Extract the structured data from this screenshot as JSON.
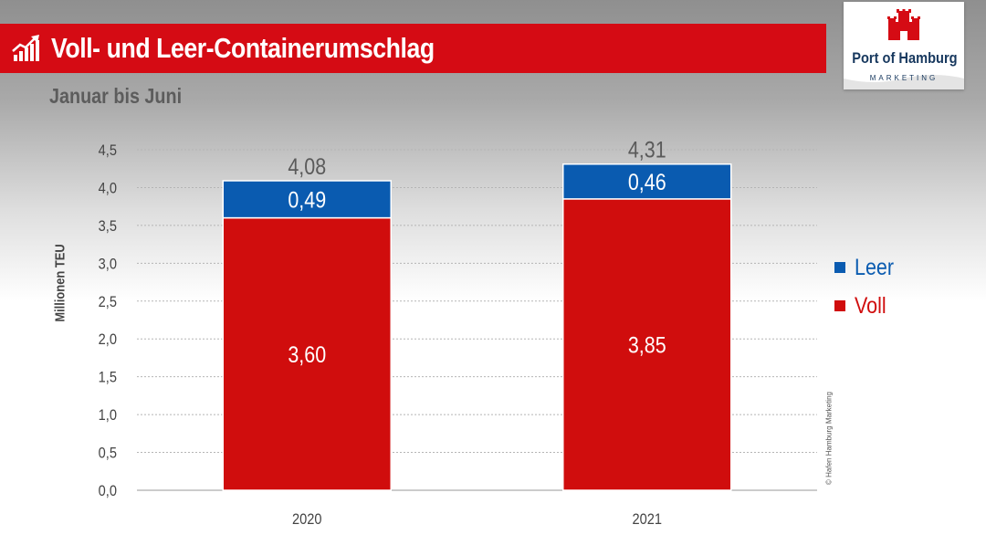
{
  "header": {
    "title": "Voll- und Leer-Containerumschlag",
    "subtitle": "Januar bis Juni",
    "title_icon": "trend-chart-icon",
    "bar_color": "#d50b14"
  },
  "logo": {
    "name": "Port of Hamburg",
    "sub": "MARKETING",
    "icon": "hamburg-castle-icon",
    "color": "#17385e"
  },
  "copyright": "© Hafen Hamburg Marketing",
  "chart_data": {
    "type": "bar",
    "stacked": true,
    "categories": [
      "2020",
      "2021"
    ],
    "series": [
      {
        "name": "Voll",
        "values": [
          3.6,
          3.85
        ],
        "labels": [
          "3,60",
          "3,85"
        ],
        "color": "#d00d0d"
      },
      {
        "name": "Leer",
        "values": [
          0.49,
          0.46
        ],
        "labels": [
          "0,49",
          "0,46"
        ],
        "color": "#0a5bb0"
      }
    ],
    "totals": [
      4.08,
      4.31
    ],
    "total_labels": [
      "4,08",
      "4,31"
    ],
    "ylabel": "Millionen TEU",
    "ylim": [
      0,
      4.5
    ],
    "yticks": [
      0,
      0.5,
      1.0,
      1.5,
      2.0,
      2.5,
      3.0,
      3.5,
      4.0,
      4.5
    ],
    "ytick_labels": [
      "0,0",
      "0,5",
      "1,0",
      "1,5",
      "2,0",
      "2,5",
      "3,0",
      "3,5",
      "4,0",
      "4,5"
    ],
    "grid": "dotted horizontal",
    "legend": {
      "position": "right",
      "items": [
        {
          "label": "Leer",
          "color": "#0a5bb0"
        },
        {
          "label": "Voll",
          "color": "#d00d0d"
        }
      ]
    }
  }
}
